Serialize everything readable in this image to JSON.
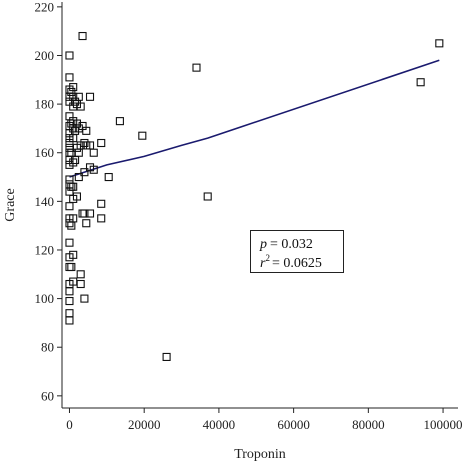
{
  "chart_data": {
    "type": "scatter",
    "title": "",
    "xlabel": "Troponin",
    "ylabel": "Grace",
    "xlim": [
      -2000,
      104000
    ],
    "ylim": [
      55,
      222
    ],
    "x_ticks": [
      0,
      20000,
      40000,
      60000,
      80000,
      100000
    ],
    "y_ticks": [
      60,
      80,
      100,
      120,
      140,
      160,
      180,
      200,
      220
    ],
    "x_tick_labels": [
      "0",
      "20000",
      "40000",
      "60000",
      "80000",
      "100000"
    ],
    "y_tick_labels": [
      "60",
      "80",
      "100",
      "120",
      "140",
      "160",
      "180",
      "200",
      "220"
    ],
    "grid": false,
    "marker": "open-square",
    "points": [
      [
        0,
        200
      ],
      [
        0,
        191
      ],
      [
        0,
        186
      ],
      [
        0,
        183
      ],
      [
        0,
        181
      ],
      [
        0,
        175
      ],
      [
        0,
        171
      ],
      [
        0,
        168
      ],
      [
        0,
        166
      ],
      [
        0,
        164
      ],
      [
        0,
        162
      ],
      [
        0,
        160
      ],
      [
        0,
        157
      ],
      [
        0,
        155
      ],
      [
        0,
        149
      ],
      [
        0,
        147
      ],
      [
        0,
        144
      ],
      [
        0,
        138
      ],
      [
        0,
        133
      ],
      [
        0,
        131
      ],
      [
        0,
        123
      ],
      [
        0,
        117
      ],
      [
        0,
        113
      ],
      [
        0,
        106
      ],
      [
        0,
        103
      ],
      [
        0,
        99
      ],
      [
        0,
        94
      ],
      [
        0,
        91
      ],
      [
        500,
        185
      ],
      [
        500,
        172
      ],
      [
        500,
        160
      ],
      [
        500,
        146
      ],
      [
        500,
        130
      ],
      [
        500,
        113
      ],
      [
        1000,
        187
      ],
      [
        1000,
        183
      ],
      [
        1000,
        179
      ],
      [
        1000,
        173
      ],
      [
        1000,
        170
      ],
      [
        1000,
        166
      ],
      [
        1000,
        156
      ],
      [
        1000,
        146
      ],
      [
        1000,
        141
      ],
      [
        1000,
        133
      ],
      [
        1000,
        118
      ],
      [
        1000,
        107
      ],
      [
        1500,
        181
      ],
      [
        1500,
        169
      ],
      [
        1500,
        157
      ],
      [
        2000,
        180
      ],
      [
        2000,
        172
      ],
      [
        2000,
        162
      ],
      [
        2000,
        142
      ],
      [
        2500,
        183
      ],
      [
        2500,
        170
      ],
      [
        2500,
        160
      ],
      [
        2500,
        150
      ],
      [
        3000,
        179
      ],
      [
        3000,
        163
      ],
      [
        3000,
        110
      ],
      [
        3000,
        106
      ],
      [
        3500,
        208
      ],
      [
        3500,
        171
      ],
      [
        3500,
        135
      ],
      [
        4000,
        164
      ],
      [
        4000,
        152
      ],
      [
        4000,
        135
      ],
      [
        4000,
        100
      ],
      [
        4500,
        169
      ],
      [
        4500,
        163
      ],
      [
        4500,
        131
      ],
      [
        5500,
        183
      ],
      [
        5500,
        163
      ],
      [
        5500,
        154
      ],
      [
        5500,
        135
      ],
      [
        6500,
        160
      ],
      [
        6500,
        153
      ],
      [
        8500,
        164
      ],
      [
        8500,
        139
      ],
      [
        8500,
        133
      ],
      [
        10500,
        150
      ],
      [
        13500,
        173
      ],
      [
        19500,
        167
      ],
      [
        26000,
        76
      ],
      [
        34000,
        195
      ],
      [
        37000,
        142
      ],
      [
        94000,
        189
      ],
      [
        99000,
        205
      ]
    ],
    "fit_line": [
      [
        0,
        150
      ],
      [
        10000,
        155
      ],
      [
        20000,
        158.5
      ],
      [
        30000,
        163
      ],
      [
        37000,
        166
      ],
      [
        99000,
        198
      ]
    ],
    "annotation": {
      "p_label": "p",
      "p_value": "= 0.032",
      "r_label": "r",
      "r_exp": "2",
      "r_value": "= 0.0625"
    }
  }
}
